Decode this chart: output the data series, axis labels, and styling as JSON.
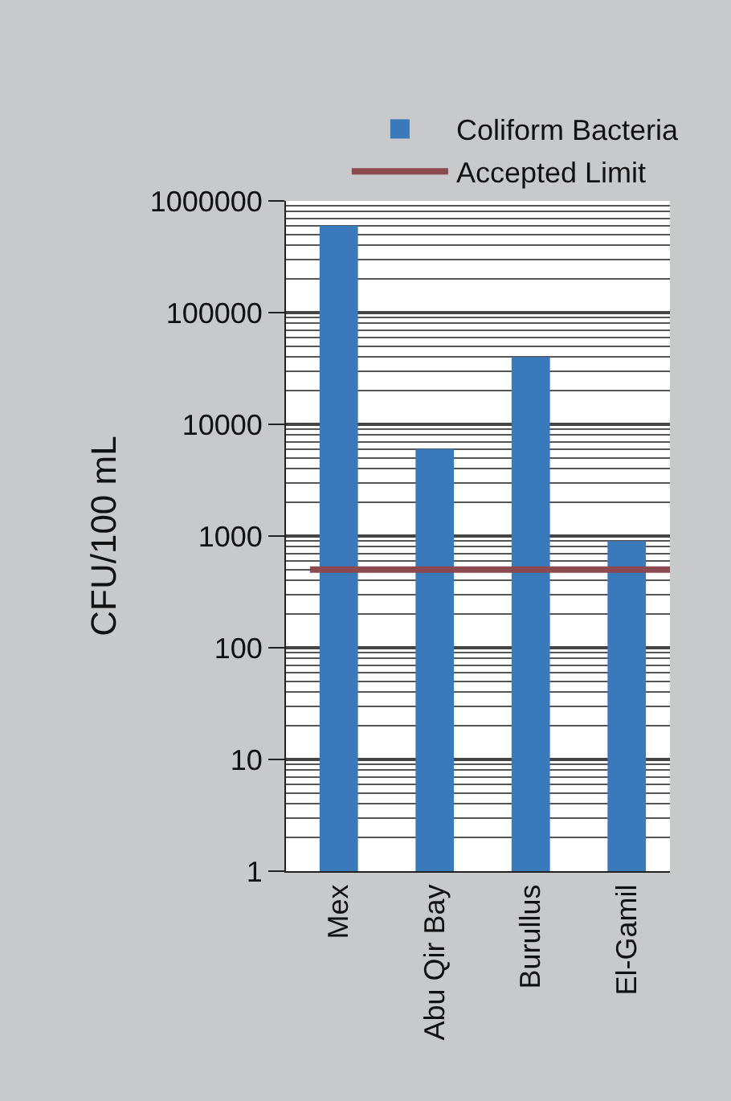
{
  "chart_data": {
    "type": "bar",
    "categories": [
      "Mex",
      "Abu Qir Bay",
      "Burullus",
      "El-Gamil"
    ],
    "series": [
      {
        "name": "Coliform Bacteria",
        "color": "#3a7aba",
        "values": [
          600000,
          6000,
          40000,
          900
        ]
      }
    ],
    "ref_lines": [
      {
        "axis": "y",
        "value": 500,
        "label": "Accepted Limit",
        "color": "#8b4a4f"
      }
    ],
    "ylabel": "CFU/100 mL",
    "log": true,
    "ylim": [
      1,
      1000000
    ],
    "yticks": [
      1,
      10,
      100,
      1000,
      10000,
      100000,
      1000000
    ],
    "grid": "y",
    "legend": "top right"
  }
}
